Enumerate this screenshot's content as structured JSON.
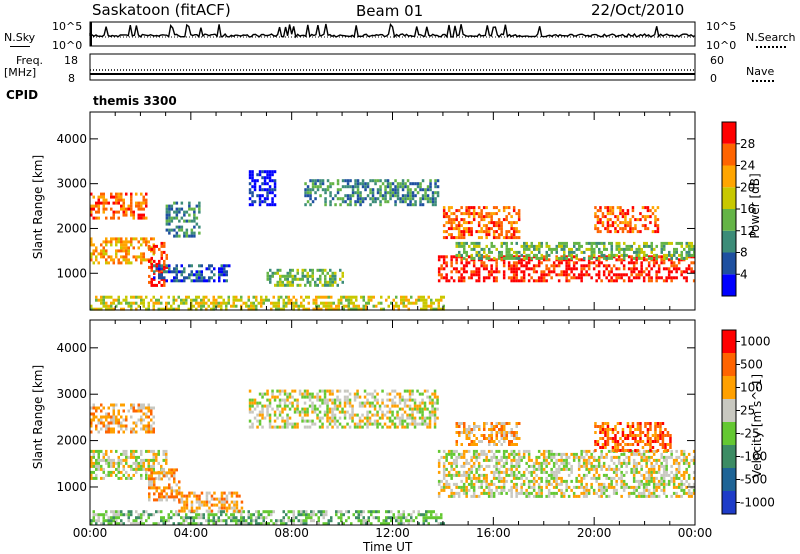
{
  "header": {
    "station": "Saskatoon (fitACF)",
    "beam": "Beam 01",
    "date": "22/Oct/2010"
  },
  "left_labels": {
    "nsky": "N.Sky",
    "nsky_top": "10^5",
    "nsky_bottom": "10^0",
    "freq_line1": "Freq.",
    "freq_line2": "[MHz]",
    "freq_top": "18",
    "freq_bottom": "8",
    "cpid": "CPID"
  },
  "right_labels": {
    "nsearch": "N.Search",
    "nsearch_top": "10^5",
    "nsearch_bottom": "10^0",
    "nave": "Nave",
    "nave_top": "60",
    "nave_bottom": "0"
  },
  "cpid_value": "themis 3300",
  "colors": {
    "power": [
      "#0000ff",
      "#1e50a0",
      "#3c8c78",
      "#64b446",
      "#c8c800",
      "#ffa500",
      "#ff6400",
      "#ff0000"
    ],
    "velocity": [
      "#1e3cc8",
      "#1e6496",
      "#3c8c64",
      "#64c832",
      "#c8c8c0",
      "#ffa000",
      "#ff6400",
      "#ff0000"
    ]
  },
  "chart_data": [
    {
      "type": "heatmap",
      "name": "power",
      "xlabel": "",
      "ylabel": "Slant Range [km]",
      "yticks": [
        "1000",
        "2000",
        "3000",
        "4000"
      ],
      "ylim": [
        180,
        4600
      ],
      "colorbar_label": "Power [dB]",
      "colorbar_ticks": [
        "4",
        "8",
        "12",
        "16",
        "20",
        "24",
        "28"
      ],
      "regions": [
        {
          "t0": 0.0,
          "t1": 2.2,
          "r0": 2200,
          "r1": 2800,
          "level": 6
        },
        {
          "t0": 0.0,
          "t1": 2.5,
          "r0": 1200,
          "r1": 1800,
          "level": 5
        },
        {
          "t0": 2.3,
          "t1": 3.0,
          "r0": 700,
          "r1": 1700,
          "level": 7
        },
        {
          "t0": 3.0,
          "t1": 4.3,
          "r0": 1800,
          "r1": 2600,
          "level": 2
        },
        {
          "t0": 2.5,
          "t1": 5.5,
          "r0": 800,
          "r1": 1200,
          "level": 1
        },
        {
          "t0": 6.3,
          "t1": 7.3,
          "r0": 2500,
          "r1": 3300,
          "level": 0
        },
        {
          "t0": 8.5,
          "t1": 13.8,
          "r0": 2500,
          "r1": 3100,
          "level": 2
        },
        {
          "t0": 7.0,
          "t1": 10.0,
          "r0": 700,
          "r1": 1100,
          "level": 3
        },
        {
          "t0": 0.0,
          "t1": 14.0,
          "r0": 200,
          "r1": 500,
          "level": 4
        },
        {
          "t0": 13.8,
          "t1": 24.0,
          "r0": 800,
          "r1": 1400,
          "level": 7
        },
        {
          "t0": 14.5,
          "t1": 24.0,
          "r0": 1300,
          "r1": 1700,
          "level": 3
        },
        {
          "t0": 14.0,
          "t1": 17.0,
          "r0": 1800,
          "r1": 2500,
          "level": 6
        },
        {
          "t0": 20.0,
          "t1": 22.5,
          "r0": 1900,
          "r1": 2500,
          "level": 6
        }
      ]
    },
    {
      "type": "heatmap",
      "name": "velocity",
      "xlabel": "Time UT",
      "ylabel": "Slant Range [km]",
      "xticks": [
        "00:00",
        "04:00",
        "08:00",
        "12:00",
        "16:00",
        "20:00",
        "00:00"
      ],
      "yticks": [
        "1000",
        "2000",
        "3000",
        "4000"
      ],
      "ylim": [
        180,
        4600
      ],
      "colorbar_label": "Velocity [m s^-1]",
      "colorbar_ticks": [
        "1000",
        "500",
        "100",
        "25",
        "-25",
        "-100",
        "-500",
        "-1000"
      ],
      "regions": [
        {
          "t0": 0.0,
          "t1": 2.5,
          "r0": 2200,
          "r1": 2800,
          "level": 5
        },
        {
          "t0": 0.0,
          "t1": 3.0,
          "r0": 1200,
          "r1": 1800,
          "level": 4
        },
        {
          "t0": 2.3,
          "t1": 3.5,
          "r0": 700,
          "r1": 1400,
          "level": 5
        },
        {
          "t0": 6.3,
          "t1": 13.8,
          "r0": 2300,
          "r1": 3100,
          "level": 4
        },
        {
          "t0": 13.8,
          "t1": 24.0,
          "r0": 800,
          "r1": 1800,
          "level": 4
        },
        {
          "t0": 20.0,
          "t1": 23.0,
          "r0": 1800,
          "r1": 2400,
          "level": 6
        },
        {
          "t0": 0.0,
          "t1": 14.0,
          "r0": 200,
          "r1": 500,
          "level": 3
        },
        {
          "t0": 3.5,
          "t1": 6.0,
          "r0": 500,
          "r1": 900,
          "level": 5
        },
        {
          "t0": 14.5,
          "t1": 17.0,
          "r0": 1900,
          "r1": 2400,
          "level": 5
        }
      ]
    }
  ]
}
